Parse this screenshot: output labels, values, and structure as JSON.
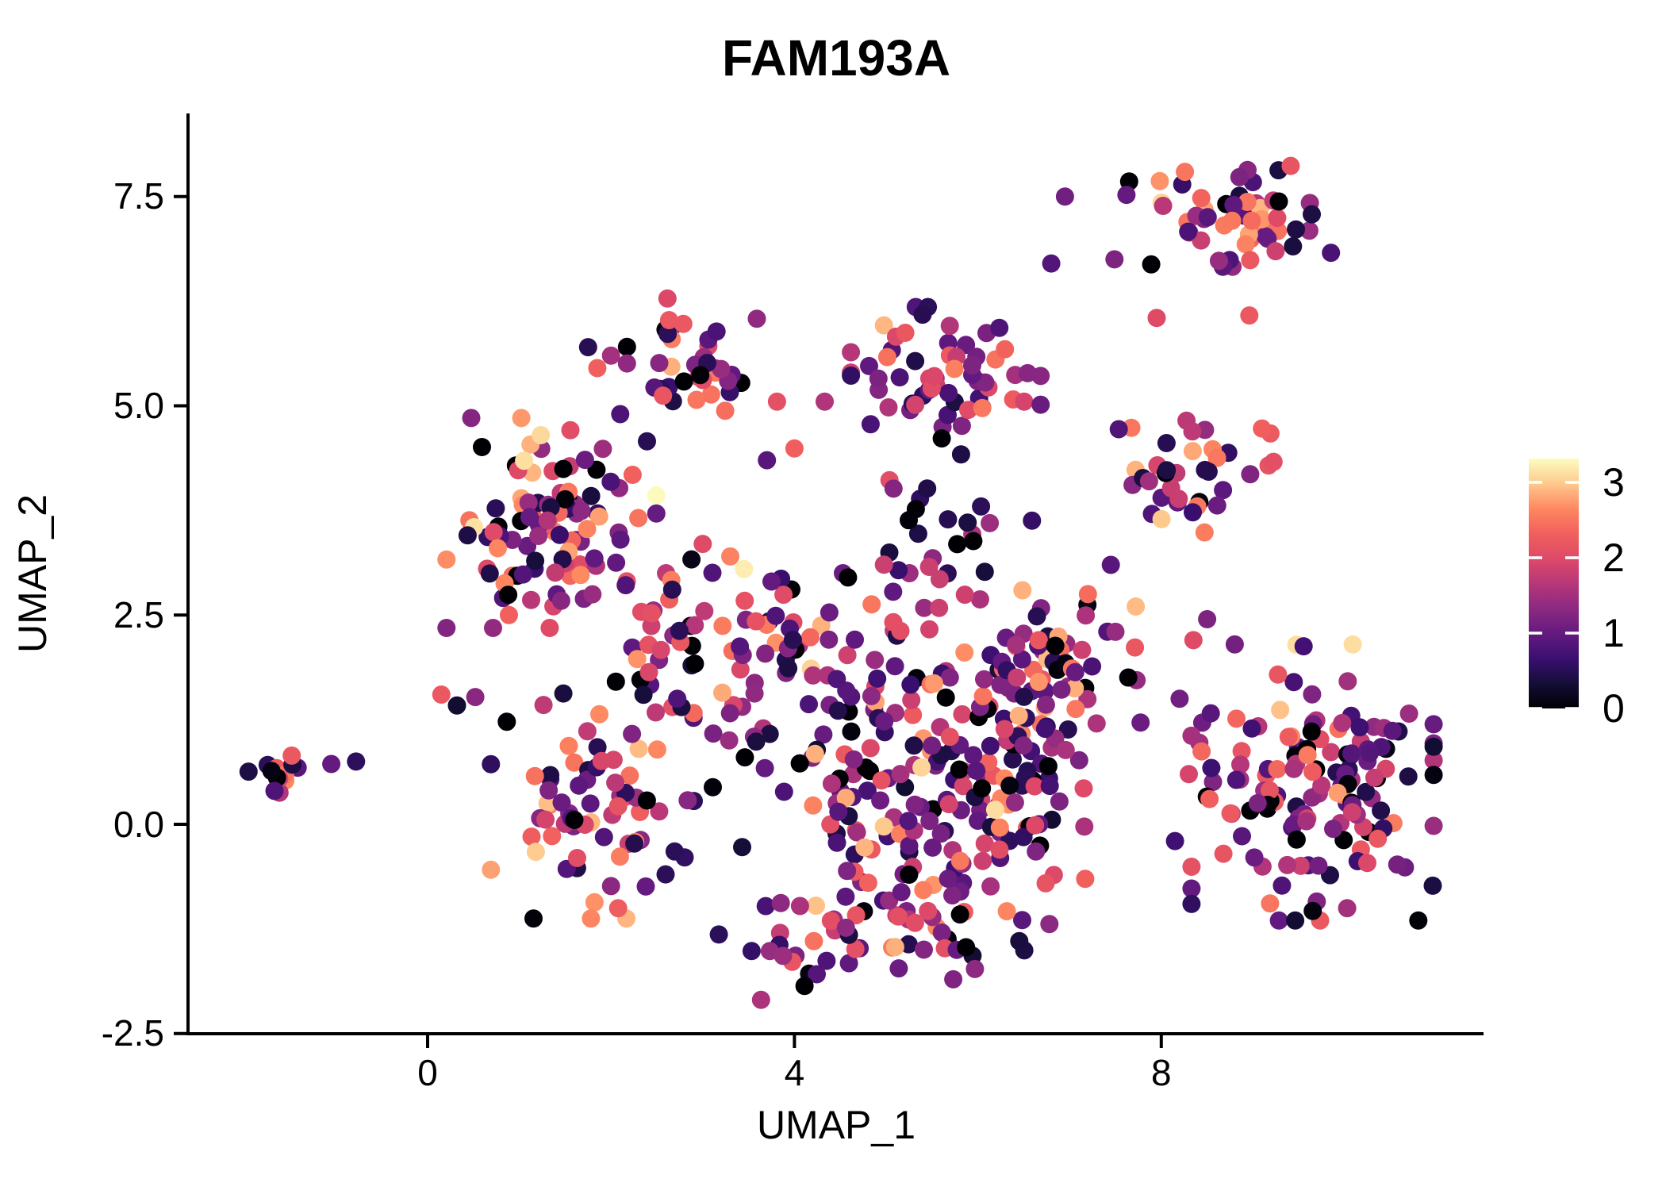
{
  "title": "FAM193A",
  "axes": {
    "x_label": "UMAP_1",
    "y_label": "UMAP_2",
    "x_tick_labels": [
      "0",
      "4",
      "8"
    ],
    "y_tick_labels": [
      "7.5",
      "5.0",
      "2.5",
      "0.0",
      "-2.5"
    ]
  },
  "legend": {
    "tick_labels_top_to_bottom": [
      "3",
      "2",
      "1",
      "0"
    ]
  },
  "chart_data": {
    "type": "scatter",
    "title": "FAM193A",
    "xlabel": "UMAP_1",
    "ylabel": "UMAP_2",
    "x_ticks": [
      0,
      4,
      8
    ],
    "y_ticks": [
      -2.5,
      0.0,
      2.5,
      5.0,
      7.5
    ],
    "x_range": [
      -2.6,
      11.5
    ],
    "y_range": [
      -2.56,
      8.5
    ],
    "grid": false,
    "legend_position": "right",
    "color_scale": {
      "type": "gradient",
      "palette": "magma",
      "domain": [
        0,
        3.3
      ],
      "ticks": [
        0,
        1,
        2,
        3
      ],
      "stops": [
        [
          0.0,
          "#000004"
        ],
        [
          0.1,
          "#140E36"
        ],
        [
          0.2,
          "#3B0F70"
        ],
        [
          0.3,
          "#641A80"
        ],
        [
          0.4,
          "#8C2981"
        ],
        [
          0.5,
          "#B73779"
        ],
        [
          0.6,
          "#DE4968"
        ],
        [
          0.7,
          "#F1605D"
        ],
        [
          0.8,
          "#FE8861"
        ],
        [
          0.9,
          "#FEC98D"
        ],
        [
          1.0,
          "#FCFDBF"
        ]
      ]
    },
    "seed": 20,
    "point_radius": 11.5,
    "clusters": [
      {
        "name": "top-right",
        "cx": 8.75,
        "cy": 7.3,
        "sx": 0.5,
        "sy": 0.29,
        "n": 52,
        "values": [
          [
            0,
            1
          ],
          [
            0.5,
            2
          ],
          [
            0.9,
            2.5
          ],
          [
            1.3,
            2.5
          ],
          [
            1.7,
            2
          ],
          [
            2.05,
            2
          ],
          [
            2.4,
            2.5
          ],
          [
            2.75,
            2
          ],
          [
            3.1,
            1
          ]
        ]
      },
      {
        "name": "right-mid",
        "cx": 8.3,
        "cy": 4.15,
        "sx": 0.42,
        "sy": 0.36,
        "n": 38,
        "values": [
          [
            0,
            1.2
          ],
          [
            0.5,
            1.8
          ],
          [
            0.9,
            2
          ],
          [
            1.35,
            2
          ],
          [
            1.8,
            2.2
          ],
          [
            2.15,
            2
          ],
          [
            2.5,
            2.2
          ],
          [
            2.85,
            1.2
          ]
        ]
      },
      {
        "name": "far-right",
        "cx": 9.65,
        "cy": 0.5,
        "sx": 0.6,
        "sy": 0.75,
        "n": 145,
        "values": [
          [
            0,
            1.4
          ],
          [
            0.45,
            2.4
          ],
          [
            0.8,
            3
          ],
          [
            1.1,
            3
          ],
          [
            1.5,
            2.8
          ],
          [
            1.9,
            2.4
          ],
          [
            2.25,
            1.8
          ],
          [
            2.6,
            1.2
          ],
          [
            2.95,
            0.4
          ]
        ]
      },
      {
        "name": "top-middle",
        "cx": 2.9,
        "cy": 5.6,
        "sx": 0.33,
        "sy": 0.31,
        "n": 38,
        "values": [
          [
            0,
            1
          ],
          [
            0.5,
            2
          ],
          [
            0.9,
            2.4
          ],
          [
            1.3,
            2
          ],
          [
            1.75,
            2
          ],
          [
            2.1,
            2
          ],
          [
            2.5,
            2
          ],
          [
            2.85,
            1
          ]
        ]
      },
      {
        "name": "mid-upper",
        "cx": 5.65,
        "cy": 5.3,
        "sx": 0.47,
        "sy": 0.4,
        "n": 60,
        "values": [
          [
            0,
            0.8
          ],
          [
            0.5,
            2.6
          ],
          [
            0.85,
            3.4
          ],
          [
            1.15,
            3
          ],
          [
            1.5,
            2.4
          ],
          [
            1.9,
            2
          ],
          [
            2.2,
            1.2
          ],
          [
            2.6,
            1
          ],
          [
            3.0,
            0.3
          ]
        ]
      },
      {
        "name": "left",
        "cx": 1.35,
        "cy": 3.6,
        "sx": 0.52,
        "sy": 0.57,
        "n": 105,
        "values": [
          [
            0,
            1.5
          ],
          [
            0.5,
            2.4
          ],
          [
            0.9,
            2.4
          ],
          [
            1.3,
            2
          ],
          [
            1.7,
            2
          ],
          [
            2.05,
            2
          ],
          [
            2.4,
            2
          ],
          [
            2.75,
            1.8
          ],
          [
            3.15,
            0.6
          ]
        ]
      },
      {
        "name": "far-left",
        "cx": -1.6,
        "cy": 0.62,
        "sx": 0.16,
        "sy": 0.11,
        "n": 14,
        "values": [
          [
            0,
            1
          ],
          [
            0.5,
            1.4
          ],
          [
            0.95,
            1.4
          ],
          [
            1.5,
            1.4
          ],
          [
            1.9,
            2
          ],
          [
            2.2,
            1.6
          ],
          [
            2.6,
            1.4
          ]
        ]
      },
      {
        "name": "blob-core",
        "cx": 5.3,
        "cy": 0.3,
        "sx": 0.85,
        "sy": 0.85,
        "n": 150,
        "values": [
          [
            0,
            2
          ],
          [
            0.45,
            3
          ],
          [
            0.8,
            3.4
          ],
          [
            1.1,
            3
          ],
          [
            1.5,
            2.8
          ],
          [
            1.9,
            2.4
          ],
          [
            2.2,
            1.5
          ],
          [
            2.6,
            1.4
          ],
          [
            2.95,
            0.6
          ]
        ]
      },
      {
        "name": "blob-left-arm",
        "cx": 1.9,
        "cy": 0.15,
        "sx": 0.55,
        "sy": 0.58,
        "n": 70,
        "values": [
          [
            0,
            1
          ],
          [
            0.5,
            2
          ],
          [
            0.9,
            2
          ],
          [
            1.3,
            2
          ],
          [
            1.8,
            2
          ],
          [
            2.2,
            2.2
          ],
          [
            2.55,
            2.4
          ],
          [
            2.85,
            1.4
          ],
          [
            3.2,
            0.4
          ]
        ]
      },
      {
        "name": "blob-top-band",
        "cx": 3.9,
        "cy": 1.9,
        "sx": 1.1,
        "sy": 0.5,
        "n": 88,
        "values": [
          [
            0,
            2
          ],
          [
            0.5,
            3
          ],
          [
            0.9,
            3
          ],
          [
            1.3,
            2.4
          ],
          [
            1.7,
            2
          ],
          [
            2.0,
            1.5
          ],
          [
            2.4,
            1.2
          ],
          [
            2.75,
            0.9
          ]
        ]
      },
      {
        "name": "blob-bottom-arc",
        "cx": 4.8,
        "cy": -1.35,
        "sx": 0.9,
        "sy": 0.34,
        "n": 55,
        "values": [
          [
            0,
            1
          ],
          [
            0.5,
            2.4
          ],
          [
            0.9,
            3
          ],
          [
            1.3,
            2.5
          ],
          [
            1.7,
            2
          ],
          [
            2.1,
            2
          ],
          [
            2.5,
            1.6
          ],
          [
            2.85,
            1.2
          ]
        ]
      },
      {
        "name": "blob-right-bump",
        "cx": 6.85,
        "cy": 2.0,
        "sx": 0.42,
        "sy": 0.45,
        "n": 45,
        "values": [
          [
            0,
            1.4
          ],
          [
            0.5,
            2
          ],
          [
            0.9,
            2.4
          ],
          [
            1.3,
            2
          ],
          [
            1.7,
            1.8
          ],
          [
            2.1,
            1.6
          ],
          [
            2.5,
            1.6
          ],
          [
            2.85,
            0.8
          ]
        ]
      },
      {
        "name": "chain-mid",
        "cx": 5.6,
        "cy": 3.4,
        "sx": 0.45,
        "sy": 0.55,
        "n": 26,
        "values": [
          [
            0,
            2
          ],
          [
            0.5,
            3
          ],
          [
            0.9,
            2.4
          ],
          [
            1.3,
            1.5
          ],
          [
            1.7,
            1
          ],
          [
            2.1,
            0.7
          ]
        ]
      },
      {
        "name": "connector-left",
        "cx": 2.7,
        "cy": 2.3,
        "sx": 0.45,
        "sy": 0.5,
        "n": 22,
        "values": [
          [
            0,
            1.5
          ],
          [
            0.5,
            2
          ],
          [
            0.9,
            2
          ],
          [
            1.4,
            1.6
          ],
          [
            1.8,
            1.5
          ],
          [
            2.2,
            1
          ],
          [
            2.6,
            1
          ]
        ]
      },
      {
        "name": "blob-right-mid",
        "cx": 6.6,
        "cy": 0.9,
        "sx": 0.42,
        "sy": 0.72,
        "n": 50,
        "values": [
          [
            0,
            2
          ],
          [
            0.45,
            3
          ],
          [
            0.8,
            3.4
          ],
          [
            1.1,
            3
          ],
          [
            1.5,
            2.8
          ],
          [
            1.9,
            2.4
          ],
          [
            2.2,
            1.5
          ],
          [
            2.6,
            1.4
          ],
          [
            2.95,
            0.6
          ]
        ]
      }
    ],
    "extra_points": [
      [
        7.62,
        7.52,
        1.0
      ],
      [
        7.49,
        6.75,
        1.2
      ],
      [
        6.95,
        7.5,
        1.1
      ],
      [
        6.8,
        6.7,
        0.85
      ],
      [
        8.92,
        6.93,
        2.6
      ],
      [
        8.97,
        6.74,
        2.2
      ],
      [
        8.96,
        6.08,
        2.2
      ],
      [
        7.95,
        6.05,
        2.0
      ],
      [
        3.81,
        5.05,
        2.1
      ],
      [
        4.33,
        5.05,
        1.6
      ],
      [
        4.0,
        4.49,
        2.3
      ],
      [
        3.7,
        4.35,
        0.9
      ],
      [
        2.0,
        5.6,
        1.5
      ],
      [
        1.85,
        5.45,
        2.3
      ],
      [
        2.1,
        4.9,
        0.8
      ],
      [
        1.75,
        5.7,
        0.5
      ],
      [
        -1.05,
        0.72,
        1.0
      ],
      [
        -0.78,
        0.75,
        0.55
      ],
      [
        0.15,
        1.55,
        2.2
      ],
      [
        0.32,
        1.42,
        0.3
      ],
      [
        0.52,
        1.52,
        1.3
      ],
      [
        7.45,
        3.1,
        0.9
      ],
      [
        7.2,
        2.75,
        2.4
      ],
      [
        7.5,
        2.3,
        1.4
      ],
      [
        3.0,
        3.35,
        2.0
      ],
      [
        3.3,
        3.2,
        2.6
      ],
      [
        3.45,
        3.05,
        3.2
      ],
      [
        3.75,
        2.9,
        1.0
      ],
      [
        8.2,
        1.5,
        1.1
      ],
      [
        8.3,
        0.6,
        1.9
      ],
      [
        8.15,
        -0.2,
        0.7
      ],
      [
        8.5,
        2.45,
        1.2
      ],
      [
        8.35,
        2.2,
        2.0
      ]
    ]
  }
}
